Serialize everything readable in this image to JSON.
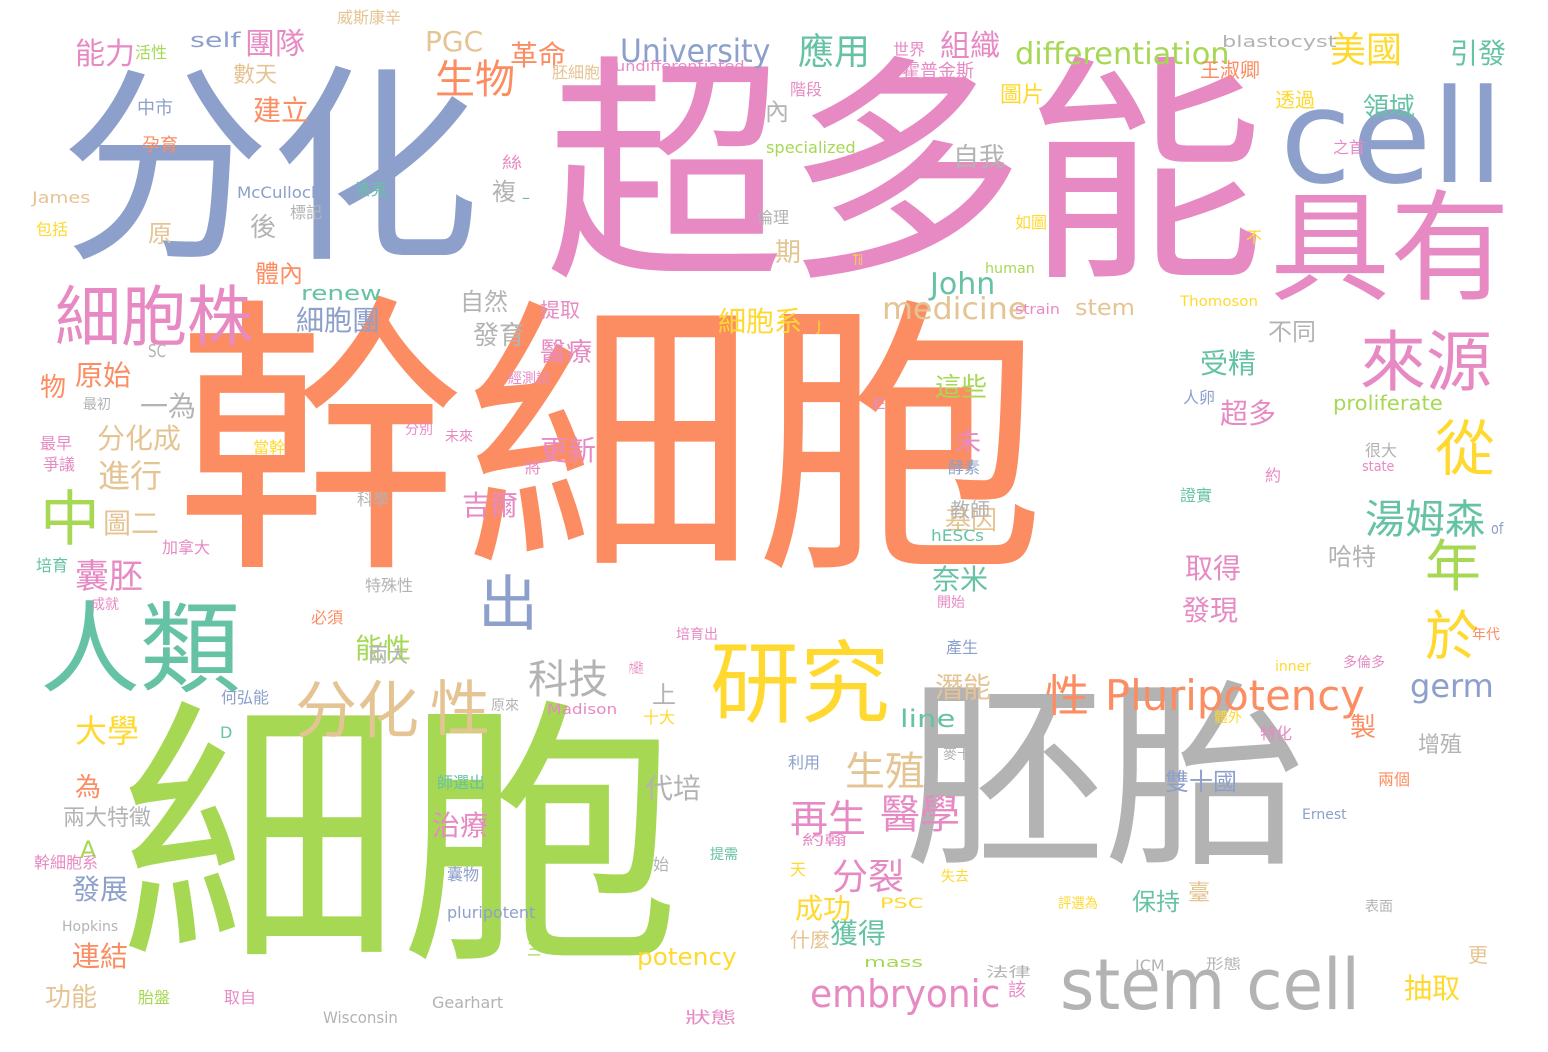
{
  "palette": {
    "orange": "#fc8d62",
    "green": "#a6d854",
    "blue": "#8da0cb",
    "pink": "#e78ac3",
    "gray": "#b3b3b3",
    "teal": "#66c2a5",
    "yellow": "#ffd92f",
    "tan": "#e5c494"
  },
  "words": [
    {
      "text": "幹細胞",
      "color": "orange"
    },
    {
      "text": "細胞",
      "color": "green"
    },
    {
      "text": "超多能",
      "color": "pink"
    },
    {
      "text": "分化",
      "color": "blue"
    },
    {
      "text": "胚胎",
      "color": "gray"
    },
    {
      "text": "cell",
      "color": "blue"
    },
    {
      "text": "具有",
      "color": "pink"
    },
    {
      "text": "人類",
      "color": "teal"
    },
    {
      "text": "研究",
      "color": "yellow"
    },
    {
      "text": "stem cell",
      "color": "gray"
    },
    {
      "text": "細胞株",
      "color": "pink"
    },
    {
      "text": "來源",
      "color": "pink"
    },
    {
      "text": "分化",
      "color": "tan"
    },
    {
      "text": "性",
      "color": "tan"
    },
    {
      "text": "中",
      "color": "green"
    },
    {
      "text": "從",
      "color": "yellow"
    },
    {
      "text": "年",
      "color": "green"
    },
    {
      "text": "出",
      "color": "blue"
    },
    {
      "text": "於",
      "color": "yellow"
    },
    {
      "text": "Pluripotency",
      "color": "orange"
    },
    {
      "text": "性",
      "color": "orange"
    },
    {
      "text": "embryonic",
      "color": "pink"
    },
    {
      "text": "湯姆森",
      "color": "teal"
    },
    {
      "text": "再生",
      "color": "pink"
    },
    {
      "text": "醫學",
      "color": "pink"
    },
    {
      "text": "科技",
      "color": "gray"
    },
    {
      "text": "生殖",
      "color": "tan"
    },
    {
      "text": "生物",
      "color": "orange"
    },
    {
      "text": "應用",
      "color": "teal"
    },
    {
      "text": "美國",
      "color": "yellow"
    },
    {
      "text": "University",
      "color": "blue"
    },
    {
      "text": "differentiation",
      "color": "green"
    },
    {
      "text": "medicine",
      "color": "tan"
    },
    {
      "text": "John",
      "color": "teal"
    },
    {
      "text": "germ",
      "color": "blue"
    },
    {
      "text": "分裂",
      "color": "pink"
    },
    {
      "text": "大學",
      "color": "yellow"
    },
    {
      "text": "進行",
      "color": "tan"
    },
    {
      "text": "囊胚",
      "color": "pink"
    },
    {
      "text": "分化成",
      "color": "tan"
    },
    {
      "text": "一為",
      "color": "gray"
    },
    {
      "text": "原始",
      "color": "orange"
    },
    {
      "text": "PGC",
      "color": "tan"
    },
    {
      "text": "革命",
      "color": "orange"
    },
    {
      "text": "組織",
      "color": "pink"
    },
    {
      "text": "團隊",
      "color": "pink"
    },
    {
      "text": "能力",
      "color": "pink"
    },
    {
      "text": "建立",
      "color": "orange"
    },
    {
      "text": "細胞系",
      "color": "yellow"
    },
    {
      "text": "細胞團",
      "color": "blue"
    },
    {
      "text": "發育",
      "color": "gray"
    },
    {
      "text": "醫療",
      "color": "pink"
    },
    {
      "text": "吉爾",
      "color": "pink"
    },
    {
      "text": "更新",
      "color": "pink"
    },
    {
      "text": "圖二",
      "color": "tan"
    },
    {
      "text": "能性",
      "color": "green"
    },
    {
      "text": "代培",
      "color": "gray"
    },
    {
      "text": "治療",
      "color": "pink"
    },
    {
      "text": "發展",
      "color": "blue"
    },
    {
      "text": "連結",
      "color": "orange"
    },
    {
      "text": "功能",
      "color": "tan"
    },
    {
      "text": "獲得",
      "color": "teal"
    },
    {
      "text": "成功",
      "color": "yellow"
    },
    {
      "text": "受精",
      "color": "teal"
    },
    {
      "text": "超多",
      "color": "pink"
    },
    {
      "text": "取得",
      "color": "pink"
    },
    {
      "text": "發現",
      "color": "pink"
    },
    {
      "text": "奈米",
      "color": "teal"
    },
    {
      "text": "潛能",
      "color": "tan"
    },
    {
      "text": "基因",
      "color": "tan"
    },
    {
      "text": "這些",
      "color": "green"
    },
    {
      "text": "自我",
      "color": "gray"
    },
    {
      "text": "領域",
      "color": "teal"
    },
    {
      "text": "引發",
      "color": "teal"
    },
    {
      "text": "雙十國",
      "color": "blue"
    },
    {
      "text": "抽取",
      "color": "yellow"
    },
    {
      "text": "保持",
      "color": "teal"
    },
    {
      "text": "line",
      "color": "teal"
    },
    {
      "text": "potency",
      "color": "yellow"
    },
    {
      "text": "self",
      "color": "blue"
    },
    {
      "text": "數天",
      "color": "tan"
    },
    {
      "text": "體內",
      "color": "orange"
    },
    {
      "text": "自然",
      "color": "gray"
    },
    {
      "text": "不同",
      "color": "gray"
    },
    {
      "text": "哈特",
      "color": "gray"
    },
    {
      "text": "圖片",
      "color": "yellow"
    },
    {
      "text": "renew",
      "color": "teal"
    },
    {
      "text": "A",
      "color": "green"
    },
    {
      "text": "兩大特徵",
      "color": "gray"
    },
    {
      "text": "為",
      "color": "orange"
    },
    {
      "text": "物",
      "color": "orange"
    },
    {
      "text": "原",
      "color": "tan"
    },
    {
      "text": "後",
      "color": "gray"
    },
    {
      "text": "期",
      "color": "tan"
    },
    {
      "text": "內",
      "color": "gray"
    },
    {
      "text": "複",
      "color": "gray"
    },
    {
      "text": "未",
      "color": "pink"
    },
    {
      "text": "製",
      "color": "orange"
    },
    {
      "text": "上",
      "color": "gray"
    },
    {
      "text": "透過",
      "color": "yellow"
    },
    {
      "text": "王淑卿",
      "color": "orange"
    },
    {
      "text": "教師",
      "color": "gray"
    },
    {
      "text": "提取",
      "color": "pink"
    },
    {
      "text": "兩大",
      "color": "gray"
    },
    {
      "text": "stem",
      "color": "tan"
    },
    {
      "text": "proliferate",
      "color": "green"
    },
    {
      "text": "增殖",
      "color": "gray"
    },
    {
      "text": "什麼",
      "color": "tan"
    },
    {
      "text": "臺",
      "color": "tan"
    },
    {
      "text": "更",
      "color": "tan"
    },
    {
      "text": "blastocyst",
      "color": "gray"
    },
    {
      "text": "undifferentiated",
      "color": "pink"
    },
    {
      "text": "威斯康辛",
      "color": "tan"
    },
    {
      "text": "活性",
      "color": "green"
    },
    {
      "text": "世界",
      "color": "pink"
    },
    {
      "text": "霍普金斯",
      "color": "pink"
    },
    {
      "text": "胚細胞",
      "color": "tan"
    },
    {
      "text": "階段",
      "color": "pink"
    },
    {
      "text": "中市",
      "color": "blue"
    },
    {
      "text": "孕育",
      "color": "orange"
    },
    {
      "text": "specialized",
      "color": "green"
    },
    {
      "text": "James",
      "color": "tan"
    },
    {
      "text": "McCulloch",
      "color": "blue"
    },
    {
      "text": "洛克",
      "color": "teal"
    },
    {
      "text": "標記",
      "color": "gray"
    },
    {
      "text": "包括",
      "color": "yellow"
    },
    {
      "text": "倫理",
      "color": "gray"
    },
    {
      "text": "如圖",
      "color": "yellow"
    },
    {
      "text": "之首",
      "color": "pink"
    },
    {
      "text": "不",
      "color": "yellow"
    },
    {
      "text": "human",
      "color": "green"
    },
    {
      "text": "strain",
      "color": "pink"
    },
    {
      "text": "Thomoson",
      "color": "yellow"
    },
    {
      "text": "SC",
      "color": "gray"
    },
    {
      "text": "最初",
      "color": "gray"
    },
    {
      "text": "最早",
      "color": "pink"
    },
    {
      "text": "爭議",
      "color": "pink"
    },
    {
      "text": "分別",
      "color": "pink"
    },
    {
      "text": "未來",
      "color": "pink"
    },
    {
      "text": "當幹",
      "color": "yellow"
    },
    {
      "text": "科學",
      "color": "gray"
    },
    {
      "text": "將",
      "color": "pink"
    },
    {
      "text": "人卵",
      "color": "blue"
    },
    {
      "text": "酵素",
      "color": "blue"
    },
    {
      "text": "證實",
      "color": "teal"
    },
    {
      "text": "很大",
      "color": "gray"
    },
    {
      "text": "state",
      "color": "pink"
    },
    {
      "text": "約",
      "color": "pink"
    },
    {
      "text": "of",
      "color": "blue"
    },
    {
      "text": "hESCs",
      "color": "teal"
    },
    {
      "text": "培育",
      "color": "teal"
    },
    {
      "text": "加拿大",
      "color": "pink"
    },
    {
      "text": "特殊性",
      "color": "gray"
    },
    {
      "text": "成就",
      "color": "pink"
    },
    {
      "text": "必須",
      "color": "orange"
    },
    {
      "text": "開始",
      "color": "pink"
    },
    {
      "text": "培育出",
      "color": "pink"
    },
    {
      "text": "產生",
      "color": "blue"
    },
    {
      "text": "年代",
      "color": "orange"
    },
    {
      "text": "inner",
      "color": "yellow"
    },
    {
      "text": "多倫多",
      "color": "pink"
    },
    {
      "text": "何弘能",
      "color": "blue"
    },
    {
      "text": "原來",
      "color": "gray"
    },
    {
      "text": "Madison",
      "color": "pink"
    },
    {
      "text": "十大",
      "color": "yellow"
    },
    {
      "text": "體外",
      "color": "yellow"
    },
    {
      "text": "特化",
      "color": "pink"
    },
    {
      "text": "利用",
      "color": "blue"
    },
    {
      "text": "麥卡",
      "color": "gray"
    },
    {
      "text": "師選出",
      "color": "teal"
    },
    {
      "text": "兩個",
      "color": "orange"
    },
    {
      "text": "Ernest",
      "color": "blue"
    },
    {
      "text": "約翰",
      "color": "pink"
    },
    {
      "text": "失去",
      "color": "yellow"
    },
    {
      "text": "天",
      "color": "yellow"
    },
    {
      "text": "始",
      "color": "gray"
    },
    {
      "text": "提需",
      "color": "teal"
    },
    {
      "text": "囊物",
      "color": "blue"
    },
    {
      "text": "pluripotent",
      "color": "blue"
    },
    {
      "text": "PSC",
      "color": "yellow"
    },
    {
      "text": "評選為",
      "color": "yellow"
    },
    {
      "text": "表面",
      "color": "gray"
    },
    {
      "text": "幹細胞系",
      "color": "pink"
    },
    {
      "text": "Hopkins",
      "color": "gray"
    },
    {
      "text": "mass",
      "color": "green"
    },
    {
      "text": "法律",
      "color": "gray"
    },
    {
      "text": "ICM",
      "color": "gray"
    },
    {
      "text": "形態",
      "color": "gray"
    },
    {
      "text": "胎盤",
      "color": "green"
    },
    {
      "text": "取自",
      "color": "pink"
    },
    {
      "text": "Gearhart",
      "color": "gray"
    },
    {
      "text": "Wisconsin",
      "color": "gray"
    },
    {
      "text": "狀態",
      "color": "pink"
    },
    {
      "text": "該",
      "color": "pink"
    },
    {
      "text": "D",
      "color": "teal"
    },
    {
      "text": "三",
      "color": "green"
    },
    {
      "text": "E",
      "color": "pink"
    },
    {
      "text": "內細胞",
      "color": "pink"
    },
    {
      "text": "經測試",
      "color": "pink"
    },
    {
      "text": "J",
      "color": "yellow"
    },
    {
      "text": "Til",
      "color": "yellow"
    },
    {
      "text": "絲",
      "color": "pink"
    },
    {
      "text": "–",
      "color": "teal"
    }
  ]
}
